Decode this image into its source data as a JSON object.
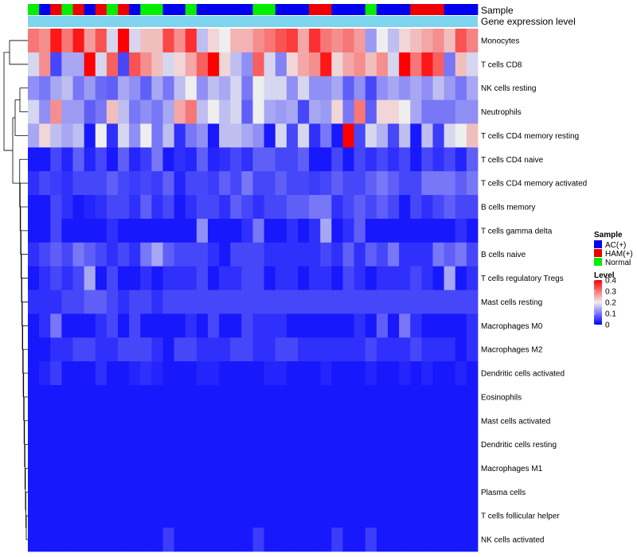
{
  "chart_data": {
    "type": "heatmap",
    "title": "",
    "column_annotations": [
      {
        "name": "Sample",
        "label": "Sample"
      },
      {
        "name": "Gene expression level",
        "label": "Gene expression level"
      }
    ],
    "sample_groups": [
      "AC(+)",
      "HAM(+)",
      "Normal"
    ],
    "group_colors": {
      "AC(+)": "#0000ee",
      "HAM(+)": "#ee0000",
      "Normal": "#00ee00"
    },
    "column_groups": [
      "Normal",
      "AC(+)",
      "HAM(+)",
      "Normal",
      "HAM(+)",
      "AC(+)",
      "HAM(+)",
      "Normal",
      "HAM(+)",
      "AC(+)",
      "Normal",
      "Normal",
      "AC(+)",
      "AC(+)",
      "Normal",
      "AC(+)",
      "AC(+)",
      "AC(+)",
      "AC(+)",
      "AC(+)",
      "Normal",
      "Normal",
      "AC(+)",
      "AC(+)",
      "AC(+)",
      "HAM(+)",
      "HAM(+)",
      "AC(+)",
      "AC(+)",
      "AC(+)",
      "Normal",
      "AC(+)",
      "AC(+)",
      "AC(+)",
      "HAM(+)",
      "HAM(+)",
      "HAM(+)",
      "AC(+)",
      "AC(+)",
      "AC(+)"
    ],
    "rows": [
      "Monocytes",
      "T cells CD8",
      "NK cells resting",
      "Neutrophils",
      "T cells CD4 memory resting",
      "T cells CD4 naive",
      "T cells CD4 memory activated",
      "B cells memory",
      "T cells gamma delta",
      "B cells naive",
      "T cells regulatory  Tregs",
      "Mast cells resting",
      "Macrophages M0",
      "Macrophages M2",
      "Dendritic cells activated",
      "Eosinophils",
      "Mast cells activated",
      "Dendritic cells resting",
      "Macrophages M1",
      "Plasma cells",
      "T cells follicular helper",
      "NK cells activated"
    ],
    "values": [
      [
        0.3,
        0.28,
        0.38,
        0.3,
        0.38,
        0.27,
        0.33,
        0.18,
        0.4,
        0.18,
        0.24,
        0.24,
        0.34,
        0.28,
        0.36,
        0.16,
        0.22,
        0.2,
        0.25,
        0.25,
        0.28,
        0.3,
        0.33,
        0.35,
        0.26,
        0.36,
        0.3,
        0.28,
        0.3,
        0.27,
        0.13,
        0.2,
        0.16,
        0.22,
        0.24,
        0.26,
        0.28,
        0.24,
        0.33,
        0.29
      ],
      [
        0.18,
        0.28,
        0.06,
        0.14,
        0.14,
        0.4,
        0.18,
        0.32,
        0.06,
        0.33,
        0.28,
        0.24,
        0.18,
        0.22,
        0.26,
        0.32,
        0.4,
        0.22,
        0.16,
        0.12,
        0.32,
        0.18,
        0.11,
        0.22,
        0.26,
        0.28,
        0.38,
        0.22,
        0.26,
        0.28,
        0.24,
        0.28,
        0.18,
        0.4,
        0.3,
        0.38,
        0.32,
        0.1,
        0.24,
        0.18
      ],
      [
        0.12,
        0.1,
        0.14,
        0.16,
        0.1,
        0.13,
        0.09,
        0.08,
        0.14,
        0.12,
        0.08,
        0.14,
        0.1,
        0.16,
        0.2,
        0.12,
        0.16,
        0.14,
        0.18,
        0.1,
        0.2,
        0.18,
        0.18,
        0.12,
        0.18,
        0.12,
        0.12,
        0.14,
        0.08,
        0.12,
        0.06,
        0.12,
        0.14,
        0.12,
        0.14,
        0.12,
        0.16,
        0.13,
        0.1,
        0.14
      ],
      [
        0.18,
        0.12,
        0.28,
        0.13,
        0.13,
        0.08,
        0.1,
        0.24,
        0.16,
        0.1,
        0.12,
        0.1,
        0.14,
        0.26,
        0.3,
        0.16,
        0.2,
        0.16,
        0.18,
        0.08,
        0.2,
        0.14,
        0.13,
        0.14,
        0.06,
        0.14,
        0.13,
        0.22,
        0.1,
        0.3,
        0.08,
        0.22,
        0.22,
        0.2,
        0.14,
        0.1,
        0.1,
        0.1,
        0.12,
        0.12
      ],
      [
        0.14,
        0.22,
        0.16,
        0.14,
        0.16,
        0.02,
        0.2,
        0.04,
        0.18,
        0.12,
        0.2,
        0.1,
        0.16,
        0.04,
        0.1,
        0.12,
        0.02,
        0.16,
        0.16,
        0.14,
        0.12,
        0.02,
        0.18,
        0.06,
        0.18,
        0.04,
        0.1,
        0.02,
        0.4,
        0.06,
        0.18,
        0.15,
        0.06,
        0.16,
        0.02,
        0.16,
        0.05,
        0.18,
        0.2,
        0.24
      ],
      [
        0.02,
        0.02,
        0.06,
        0.03,
        0.08,
        0.03,
        0.06,
        0.02,
        0.08,
        0.03,
        0.05,
        0.1,
        0.02,
        0.04,
        0.03,
        0.08,
        0.03,
        0.04,
        0.06,
        0.04,
        0.08,
        0.08,
        0.06,
        0.06,
        0.08,
        0.02,
        0.02,
        0.06,
        0.02,
        0.06,
        0.04,
        0.06,
        0.04,
        0.06,
        0.02,
        0.06,
        0.04,
        0.06,
        0.03,
        0.08
      ],
      [
        0.04,
        0.06,
        0.05,
        0.04,
        0.06,
        0.06,
        0.06,
        0.08,
        0.06,
        0.05,
        0.06,
        0.05,
        0.08,
        0.03,
        0.06,
        0.06,
        0.05,
        0.08,
        0.06,
        0.1,
        0.06,
        0.06,
        0.08,
        0.06,
        0.06,
        0.05,
        0.06,
        0.08,
        0.06,
        0.06,
        0.08,
        0.1,
        0.08,
        0.06,
        0.06,
        0.1,
        0.1,
        0.1,
        0.08,
        0.1
      ],
      [
        0.02,
        0.02,
        0.06,
        0.04,
        0.02,
        0.03,
        0.04,
        0.06,
        0.06,
        0.04,
        0.08,
        0.04,
        0.06,
        0.02,
        0.04,
        0.06,
        0.06,
        0.04,
        0.08,
        0.06,
        0.04,
        0.06,
        0.06,
        0.08,
        0.08,
        0.1,
        0.1,
        0.04,
        0.06,
        0.08,
        0.06,
        0.08,
        0.06,
        0.02,
        0.06,
        0.04,
        0.06,
        0.08,
        0.06,
        0.06
      ],
      [
        0.02,
        0.02,
        0.06,
        0.02,
        0.02,
        0.02,
        0.02,
        0.04,
        0.02,
        0.02,
        0.02,
        0.02,
        0.02,
        0.02,
        0.02,
        0.12,
        0.02,
        0.02,
        0.02,
        0.04,
        0.1,
        0.02,
        0.02,
        0.04,
        0.02,
        0.04,
        0.14,
        0.02,
        0.04,
        0.08,
        0.02,
        0.02,
        0.02,
        0.02,
        0.02,
        0.02,
        0.02,
        0.02,
        0.04,
        0.02
      ],
      [
        0.04,
        0.06,
        0.08,
        0.06,
        0.1,
        0.08,
        0.06,
        0.04,
        0.06,
        0.04,
        0.1,
        0.14,
        0.08,
        0.06,
        0.06,
        0.06,
        0.04,
        0.02,
        0.06,
        0.06,
        0.06,
        0.04,
        0.04,
        0.04,
        0.04,
        0.04,
        0.06,
        0.04,
        0.08,
        0.04,
        0.08,
        0.06,
        0.1,
        0.04,
        0.04,
        0.04,
        0.1,
        0.08,
        0.1,
        0.06
      ],
      [
        0.02,
        0.04,
        0.06,
        0.04,
        0.06,
        0.14,
        0.02,
        0.06,
        0.02,
        0.02,
        0.04,
        0.02,
        0.04,
        0.04,
        0.04,
        0.06,
        0.02,
        0.04,
        0.04,
        0.06,
        0.06,
        0.02,
        0.04,
        0.04,
        0.02,
        0.04,
        0.04,
        0.02,
        0.06,
        0.04,
        0.02,
        0.04,
        0.04,
        0.04,
        0.06,
        0.04,
        0.02,
        0.14,
        0.02,
        0.04
      ],
      [
        0.04,
        0.04,
        0.04,
        0.06,
        0.06,
        0.08,
        0.08,
        0.06,
        0.04,
        0.06,
        0.06,
        0.04,
        0.06,
        0.06,
        0.06,
        0.06,
        0.06,
        0.06,
        0.06,
        0.06,
        0.06,
        0.06,
        0.06,
        0.06,
        0.06,
        0.06,
        0.06,
        0.06,
        0.06,
        0.06,
        0.06,
        0.06,
        0.06,
        0.06,
        0.06,
        0.06,
        0.06,
        0.06,
        0.06,
        0.06
      ],
      [
        0.02,
        0.04,
        0.1,
        0.02,
        0.02,
        0.02,
        0.04,
        0.06,
        0.02,
        0.06,
        0.02,
        0.02,
        0.02,
        0.02,
        0.04,
        0.02,
        0.06,
        0.02,
        0.02,
        0.06,
        0.04,
        0.04,
        0.04,
        0.02,
        0.02,
        0.02,
        0.02,
        0.02,
        0.02,
        0.04,
        0.02,
        0.08,
        0.02,
        0.1,
        0.04,
        0.02,
        0.02,
        0.02,
        0.02,
        0.04
      ],
      [
        0.02,
        0.02,
        0.04,
        0.04,
        0.06,
        0.06,
        0.04,
        0.04,
        0.06,
        0.06,
        0.06,
        0.04,
        0.02,
        0.06,
        0.06,
        0.04,
        0.04,
        0.04,
        0.06,
        0.06,
        0.04,
        0.04,
        0.06,
        0.06,
        0.04,
        0.04,
        0.04,
        0.04,
        0.04,
        0.04,
        0.06,
        0.04,
        0.04,
        0.04,
        0.06,
        0.04,
        0.04,
        0.04,
        0.02,
        0.04
      ],
      [
        0.02,
        0.03,
        0.05,
        0.02,
        0.02,
        0.02,
        0.04,
        0.02,
        0.02,
        0.03,
        0.04,
        0.03,
        0.02,
        0.02,
        0.02,
        0.03,
        0.03,
        0.02,
        0.02,
        0.02,
        0.02,
        0.03,
        0.03,
        0.02,
        0.02,
        0.02,
        0.03,
        0.02,
        0.02,
        0.02,
        0.03,
        0.02,
        0.02,
        0.03,
        0.02,
        0.03,
        0.02,
        0.02,
        0.03,
        0.02
      ],
      [
        0.02,
        0.02,
        0.02,
        0.02,
        0.02,
        0.02,
        0.02,
        0.02,
        0.02,
        0.02,
        0.02,
        0.02,
        0.02,
        0.02,
        0.02,
        0.02,
        0.02,
        0.02,
        0.02,
        0.02,
        0.02,
        0.02,
        0.02,
        0.02,
        0.02,
        0.02,
        0.02,
        0.02,
        0.02,
        0.02,
        0.02,
        0.02,
        0.02,
        0.02,
        0.02,
        0.02,
        0.02,
        0.02,
        0.02,
        0.02
      ],
      [
        0.02,
        0.02,
        0.02,
        0.02,
        0.02,
        0.02,
        0.02,
        0.02,
        0.02,
        0.02,
        0.02,
        0.02,
        0.02,
        0.02,
        0.02,
        0.02,
        0.02,
        0.02,
        0.02,
        0.02,
        0.02,
        0.02,
        0.02,
        0.02,
        0.02,
        0.02,
        0.02,
        0.02,
        0.02,
        0.02,
        0.02,
        0.02,
        0.02,
        0.02,
        0.02,
        0.02,
        0.02,
        0.02,
        0.02,
        0.02
      ],
      [
        0.02,
        0.02,
        0.02,
        0.02,
        0.02,
        0.02,
        0.02,
        0.02,
        0.02,
        0.02,
        0.02,
        0.02,
        0.02,
        0.02,
        0.02,
        0.02,
        0.02,
        0.02,
        0.02,
        0.02,
        0.02,
        0.02,
        0.02,
        0.02,
        0.02,
        0.02,
        0.02,
        0.02,
        0.02,
        0.02,
        0.02,
        0.02,
        0.02,
        0.02,
        0.02,
        0.02,
        0.02,
        0.02,
        0.02,
        0.02
      ],
      [
        0.02,
        0.02,
        0.02,
        0.02,
        0.02,
        0.02,
        0.02,
        0.02,
        0.02,
        0.02,
        0.02,
        0.02,
        0.02,
        0.02,
        0.02,
        0.02,
        0.02,
        0.02,
        0.02,
        0.02,
        0.02,
        0.02,
        0.02,
        0.02,
        0.02,
        0.02,
        0.02,
        0.02,
        0.02,
        0.02,
        0.02,
        0.02,
        0.02,
        0.02,
        0.02,
        0.02,
        0.02,
        0.02,
        0.02,
        0.02
      ],
      [
        0.02,
        0.02,
        0.02,
        0.02,
        0.02,
        0.02,
        0.02,
        0.02,
        0.02,
        0.02,
        0.02,
        0.02,
        0.02,
        0.02,
        0.02,
        0.02,
        0.02,
        0.02,
        0.02,
        0.02,
        0.02,
        0.02,
        0.02,
        0.02,
        0.02,
        0.02,
        0.02,
        0.02,
        0.02,
        0.02,
        0.02,
        0.02,
        0.02,
        0.02,
        0.02,
        0.02,
        0.02,
        0.02,
        0.02,
        0.02
      ],
      [
        0.02,
        0.02,
        0.02,
        0.02,
        0.02,
        0.02,
        0.02,
        0.02,
        0.02,
        0.02,
        0.02,
        0.02,
        0.02,
        0.02,
        0.02,
        0.02,
        0.02,
        0.02,
        0.02,
        0.02,
        0.02,
        0.02,
        0.02,
        0.02,
        0.02,
        0.02,
        0.02,
        0.02,
        0.02,
        0.02,
        0.02,
        0.02,
        0.02,
        0.02,
        0.02,
        0.02,
        0.02,
        0.02,
        0.02,
        0.02
      ],
      [
        0.02,
        0.02,
        0.02,
        0.02,
        0.02,
        0.02,
        0.02,
        0.02,
        0.02,
        0.02,
        0.02,
        0.02,
        0.05,
        0.02,
        0.02,
        0.02,
        0.02,
        0.02,
        0.02,
        0.02,
        0.05,
        0.02,
        0.02,
        0.02,
        0.02,
        0.02,
        0.02,
        0.05,
        0.02,
        0.02,
        0.05,
        0.02,
        0.02,
        0.02,
        0.02,
        0.02,
        0.02,
        0.02,
        0.02,
        0.02
      ]
    ],
    "expression_level_color": "#7ed4ee",
    "value_range": [
      0,
      0.4
    ],
    "color_scale": {
      "low": "#0000ff",
      "mid": "#eeeeee",
      "high": "#ff0000"
    },
    "legend": {
      "sample_title": "Sample",
      "level_title": "Level",
      "level_ticks": [
        "0.4",
        "0.3",
        "0.2",
        "0.1",
        "0"
      ],
      "level_values": [
        0.4,
        0.3,
        0.2,
        0.1,
        0
      ],
      "position": "right"
    },
    "dendrogram": "rows"
  }
}
